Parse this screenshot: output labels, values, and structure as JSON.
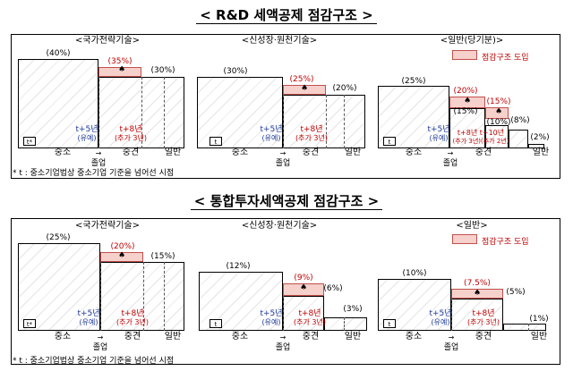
{
  "title1": "< R&D 세액공제 점감구조 >",
  "title2": "< 통합투자세액공제 점감구조 >",
  "legend": "점감구조 도입",
  "sections": [
    {
      "headers": [
        "<국가전략기술>",
        "<신성장·원천기술>",
        "<일반(당기분)>"
      ],
      "panels": [
        {
          "sme": "(40%)",
          "new": "(35%)",
          "gen": "(30%)"
        },
        {
          "sme": "(30%)",
          "new": "(25%)",
          "gen": "(20%)"
        },
        {
          "sme": "(25%)",
          "new1": "(20%)",
          "new2": "(15%)",
          "mid": "(15%)",
          "mid2": "(10%)",
          "mid3": "(8%)",
          "gen": "(2%)"
        }
      ],
      "t_label": "t*",
      "t_label_plain": "t",
      "plus5": "t+5년",
      "grace": "(유예)",
      "plus8": "t+8년",
      "plus8_sub": "(추가 3년)",
      "plus10": "t+8년 t+10년",
      "plus10_sub": "(추가 3년)(추가 2년)",
      "sme_label": "중소",
      "mid_label": "중견",
      "gen_label": "일반",
      "exit_label": "졸업",
      "note": "* t : 중소기업법상 중소기업 기준을 넘어선 시점"
    },
    {
      "headers": [
        "<국가전략기술>",
        "<신성장·원천기술>",
        "<일반>"
      ],
      "panels": [
        {
          "sme": "(25%)",
          "new": "(20%)",
          "gen": "(15%)"
        },
        {
          "sme": "(12%)",
          "new": "(9%)",
          "mid": "(6%)",
          "gen": "(3%)"
        },
        {
          "sme": "(10%)",
          "new": "(7.5%)",
          "mid": "(5%)",
          "gen": "(1%)"
        }
      ],
      "note": "* t : 중소기업법상 중소기업 기준을 넘어선 시점"
    }
  ]
}
